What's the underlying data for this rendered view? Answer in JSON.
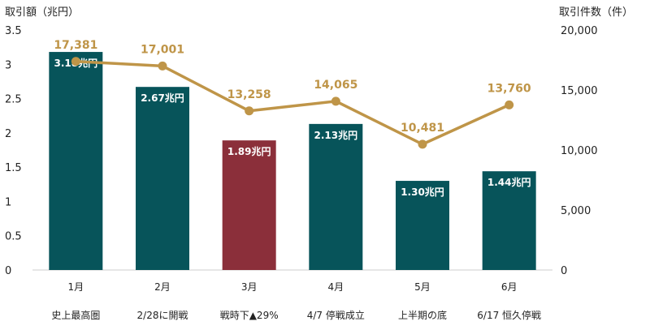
{
  "chart_data": {
    "type": "bar",
    "left_axis_title": "取引額（兆円）",
    "right_axis_title": "取引件数（件）",
    "left_ticks": [
      "0",
      "0.5",
      "1",
      "1.5",
      "2",
      "2.5",
      "3",
      "3.5"
    ],
    "right_ticks": [
      "0",
      "5,000",
      "10,000",
      "15,000",
      "20,000"
    ],
    "categories": [
      "1月",
      "2月",
      "3月",
      "4月",
      "5月",
      "6月"
    ],
    "sub_labels": [
      "史上最高圏",
      "2/28に開戦",
      "戦時下▲29%",
      "4/7 停戦成立",
      "上半期の底",
      "6/17 恒久停戦"
    ],
    "ylim_left": [
      0,
      3.5
    ],
    "ylim_right": [
      0,
      20000
    ],
    "bar_series": {
      "values": [
        3.18,
        2.67,
        1.89,
        2.13,
        1.3,
        1.44
      ],
      "labels": [
        "3.18兆円",
        "2.67兆円",
        "1.89兆円",
        "2.13兆円",
        "1.30兆円",
        "1.44兆円"
      ],
      "colors": [
        "#07545a",
        "#07545a",
        "#8b2f3a",
        "#07545a",
        "#07545a",
        "#07545a"
      ]
    },
    "line_series": {
      "values": [
        17381,
        17001,
        13258,
        14065,
        10481,
        13760
      ],
      "labels": [
        "17,381",
        "17,001",
        "13,258",
        "14,065",
        "10,481",
        "13,760"
      ],
      "color": "#bf9548"
    }
  }
}
